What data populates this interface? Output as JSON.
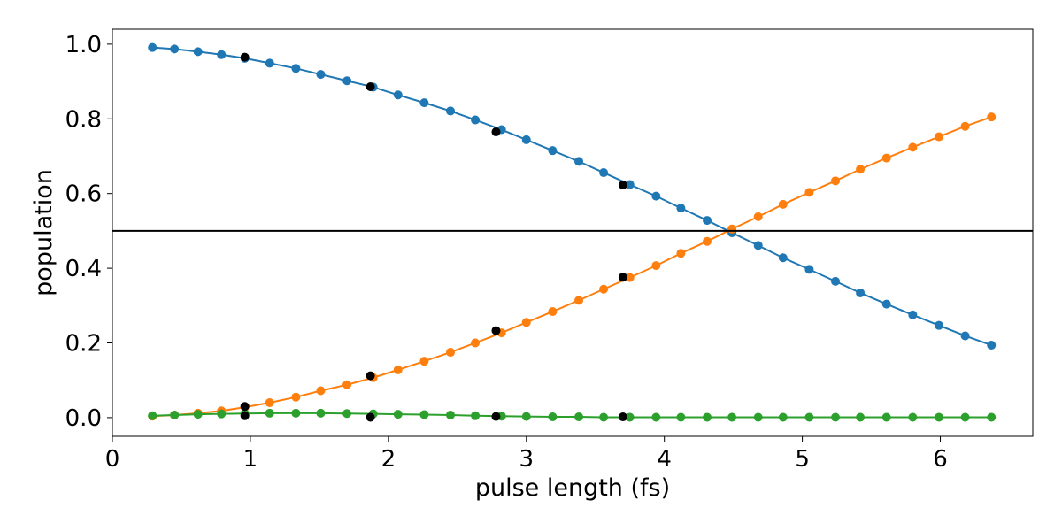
{
  "chart_data": {
    "type": "line",
    "title": "",
    "xlabel": "pulse length (fs)",
    "ylabel": "population",
    "xlim": [
      0,
      6.67
    ],
    "ylim": [
      -0.05,
      1.04
    ],
    "xticks": [
      0,
      1,
      2,
      3,
      4,
      5,
      6
    ],
    "yticks": [
      0.0,
      0.2,
      0.4,
      0.6,
      0.8,
      1.0
    ],
    "xtick_labels": [
      "0",
      "1",
      "2",
      "3",
      "4",
      "5",
      "6"
    ],
    "ytick_labels": [
      "0.0",
      "0.2",
      "0.4",
      "0.6",
      "0.8",
      "1.0"
    ],
    "grid": false,
    "legend": "none",
    "hline": {
      "y": 0.5,
      "color": "#000000"
    },
    "x": [
      0.29,
      0.45,
      0.62,
      0.79,
      0.96,
      1.14,
      1.33,
      1.51,
      1.7,
      1.89,
      2.07,
      2.26,
      2.45,
      2.63,
      2.82,
      3.0,
      3.19,
      3.38,
      3.56,
      3.75,
      3.94,
      4.12,
      4.31,
      4.49,
      4.68,
      4.86,
      5.05,
      5.24,
      5.42,
      5.61,
      5.8,
      5.99,
      6.18,
      6.37
    ],
    "series": [
      {
        "color": "#1f77b4",
        "values": [
          0.991,
          0.987,
          0.98,
          0.972,
          0.962,
          0.949,
          0.935,
          0.919,
          0.902,
          0.885,
          0.864,
          0.843,
          0.821,
          0.797,
          0.771,
          0.744,
          0.715,
          0.686,
          0.656,
          0.624,
          0.593,
          0.561,
          0.528,
          0.495,
          0.461,
          0.428,
          0.397,
          0.365,
          0.334,
          0.304,
          0.275,
          0.247,
          0.219,
          0.194
        ]
      },
      {
        "color": "#ff7f0e",
        "values": [
          0.004,
          0.007,
          0.012,
          0.018,
          0.028,
          0.04,
          0.055,
          0.072,
          0.088,
          0.107,
          0.128,
          0.151,
          0.175,
          0.2,
          0.227,
          0.255,
          0.284,
          0.314,
          0.344,
          0.375,
          0.407,
          0.44,
          0.472,
          0.505,
          0.538,
          0.571,
          0.603,
          0.634,
          0.665,
          0.695,
          0.724,
          0.752,
          0.78,
          0.805
        ]
      },
      {
        "color": "#2ca02c",
        "values": [
          0.005,
          0.007,
          0.009,
          0.01,
          0.011,
          0.012,
          0.012,
          0.012,
          0.011,
          0.01,
          0.009,
          0.008,
          0.007,
          0.005,
          0.004,
          0.003,
          0.002,
          0.002,
          0.001,
          0.001,
          0.001,
          0.001,
          0.001,
          0.001,
          0.001,
          0.001,
          0.001,
          0.001,
          0.001,
          0.001,
          0.001,
          0.001,
          0.001,
          0.001
        ]
      }
    ],
    "reference_points": {
      "color": "#000000",
      "points": [
        {
          "x": 0.96,
          "y": 0.965
        },
        {
          "x": 0.96,
          "y": 0.03
        },
        {
          "x": 0.96,
          "y": 0.005
        },
        {
          "x": 1.87,
          "y": 0.886
        },
        {
          "x": 1.87,
          "y": 0.112
        },
        {
          "x": 1.87,
          "y": 0.001
        },
        {
          "x": 2.78,
          "y": 0.765
        },
        {
          "x": 2.78,
          "y": 0.233
        },
        {
          "x": 2.78,
          "y": 0.003
        },
        {
          "x": 3.7,
          "y": 0.623
        },
        {
          "x": 3.7,
          "y": 0.376
        },
        {
          "x": 3.7,
          "y": 0.002
        }
      ]
    }
  }
}
